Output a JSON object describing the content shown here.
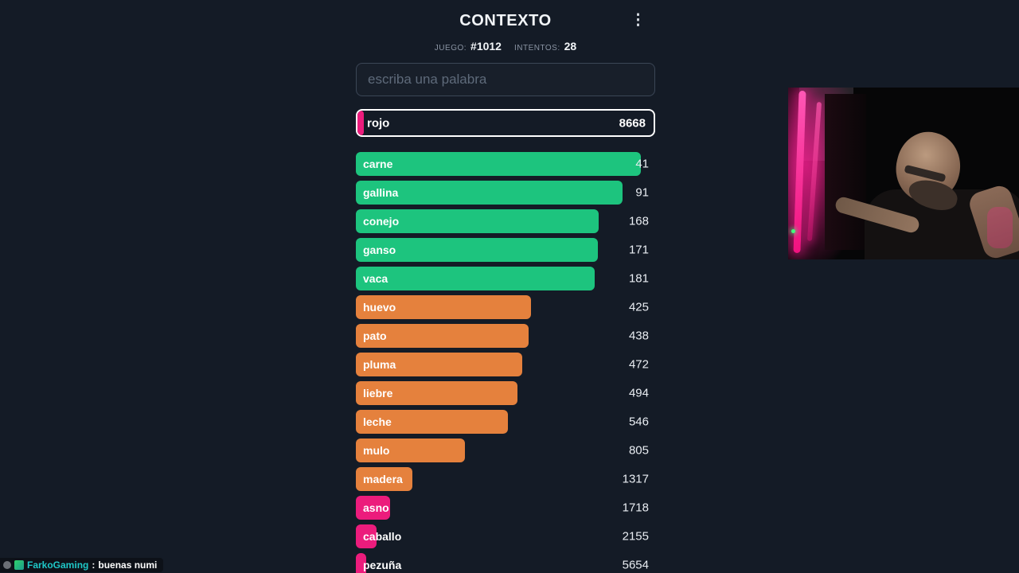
{
  "header": {
    "title": "CONTEXTO",
    "menu_glyph": "⋮",
    "game_label": "JUEGO:",
    "game_value": "#1012",
    "attempts_label": "INTENTOS:",
    "attempts_value": "28"
  },
  "search": {
    "placeholder": "escriba una palabra"
  },
  "current_guess": {
    "word": "rojo",
    "score": "8668",
    "color": "pink",
    "width_pct": 2.2
  },
  "guesses": [
    {
      "word": "carne",
      "score": "41",
      "color": "green",
      "width_pct": 95.2
    },
    {
      "word": "gallina",
      "score": "91",
      "color": "green",
      "width_pct": 89.1
    },
    {
      "word": "conejo",
      "score": "168",
      "color": "green",
      "width_pct": 81.1
    },
    {
      "word": "ganso",
      "score": "171",
      "color": "green",
      "width_pct": 80.9
    },
    {
      "word": "vaca",
      "score": "181",
      "color": "green",
      "width_pct": 79.8
    },
    {
      "word": "huevo",
      "score": "425",
      "color": "orange",
      "width_pct": 58.5
    },
    {
      "word": "pato",
      "score": "438",
      "color": "orange",
      "width_pct": 57.7
    },
    {
      "word": "pluma",
      "score": "472",
      "color": "orange",
      "width_pct": 55.6
    },
    {
      "word": "liebre",
      "score": "494",
      "color": "orange",
      "width_pct": 54.0
    },
    {
      "word": "leche",
      "score": "546",
      "color": "orange",
      "width_pct": 50.8
    },
    {
      "word": "mulo",
      "score": "805",
      "color": "orange",
      "width_pct": 36.4
    },
    {
      "word": "madera",
      "score": "1317",
      "color": "orange",
      "width_pct": 18.9
    },
    {
      "word": "asno",
      "score": "1718",
      "color": "pink",
      "width_pct": 11.4
    },
    {
      "word": "caballo",
      "score": "2155",
      "color": "pink",
      "width_pct": 6.9
    },
    {
      "word": "pezuña",
      "score": "5654",
      "color": "pink",
      "width_pct": 3.5
    }
  ],
  "colors": {
    "bg": "#141b26",
    "green": "#1dc47e",
    "orange": "#e5813d",
    "pink": "#ec1c7c",
    "text": "#eef1f5",
    "muted": "#8a94a3",
    "input-border": "#3b4656",
    "chat-username": "#1fc8c8"
  },
  "chat": {
    "badge_icons": [
      "gray-dot-badge-icon",
      "green-emote-badge-icon"
    ],
    "username": "FarkoGaming",
    "separator": ":",
    "message": "buenas numi"
  }
}
